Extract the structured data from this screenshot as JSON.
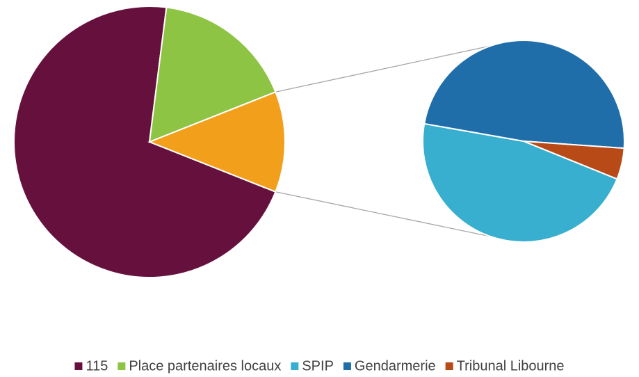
{
  "chart_data": {
    "type": "pie_of_pie",
    "categories": [
      "115",
      "Place partenaires locaux",
      "SPIP",
      "Gendarmerie",
      "Tribunal Libourne"
    ],
    "values": [
      71,
      17,
      5.6,
      5.8,
      0.6
    ],
    "colors": [
      "#66113d",
      "#8dc444",
      "#38afce",
      "#1f6eaa",
      "#b84a17"
    ],
    "split_last": 3,
    "other_color": "#f2a01b",
    "legend": "bottom"
  }
}
